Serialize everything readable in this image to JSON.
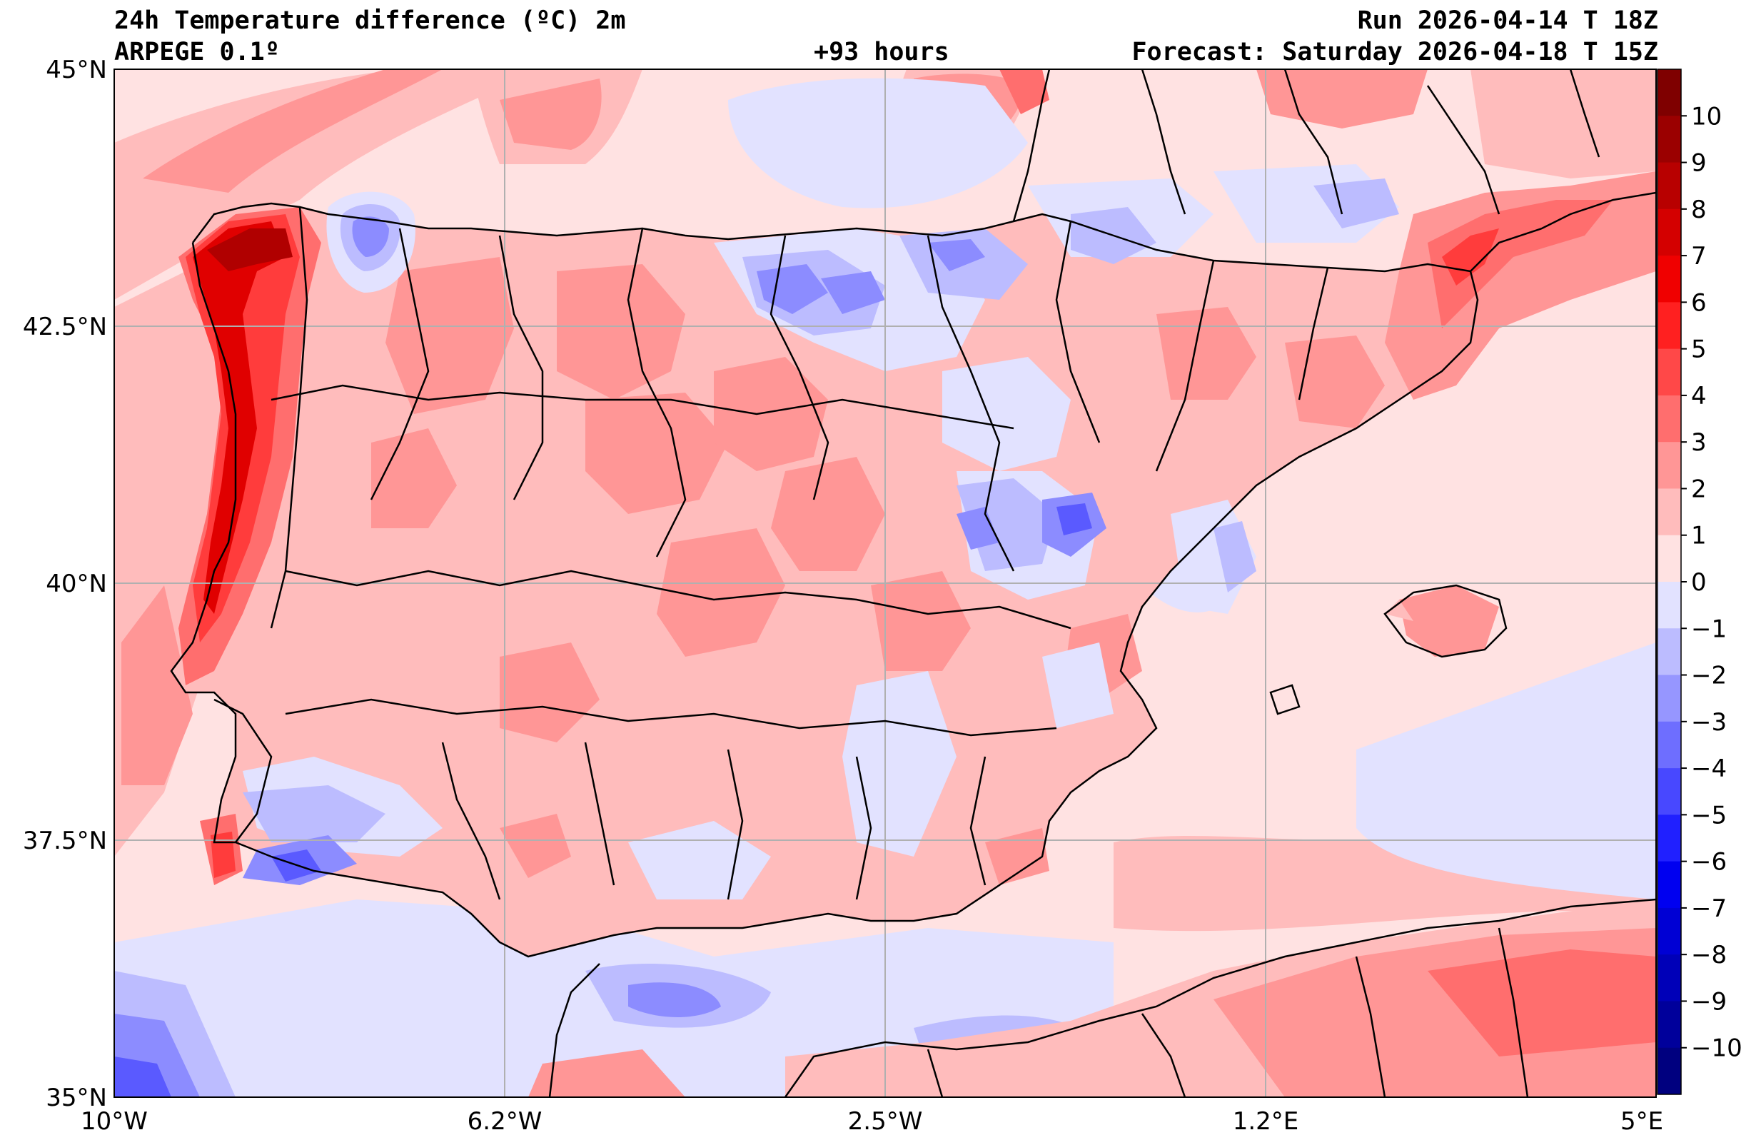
{
  "header": {
    "title": "24h Temperature difference (ºC) 2m",
    "model": "ARPEGE 0.1º",
    "lead": "+93 hours",
    "run": "Run 2026-04-14 T 18Z",
    "forecast": "Forecast: Saturday 2026-04-18 T 15Z"
  },
  "axes": {
    "lat_labels": [
      "45°N",
      "42.5°N",
      "40°N",
      "37.5°N",
      "35°N"
    ],
    "lon_labels": [
      "10°W",
      "6.2°W",
      "2.5°W",
      "1.2°E",
      "5°E"
    ]
  },
  "colorbar": {
    "levels": [
      "10",
      "9",
      "8",
      "7",
      "6",
      "5",
      "4",
      "3",
      "2",
      "1",
      "0",
      "−1",
      "−2",
      "−3",
      "−4",
      "−5",
      "−6",
      "−7",
      "−8",
      "−9",
      "−10"
    ],
    "colors": [
      "#7f0000",
      "#9b0000",
      "#b80000",
      "#d40000",
      "#f00000",
      "#ff2020",
      "#ff4848",
      "#ff6e6e",
      "#ff9696",
      "#ffbcbc",
      "#ffe2e2",
      "#e2e2ff",
      "#bcbcff",
      "#9696ff",
      "#6e6eff",
      "#4848ff",
      "#2020ff",
      "#0000f0",
      "#0000d4",
      "#0000b8",
      "#00009b",
      "#00007f"
    ]
  },
  "colors": {
    "sea": "#ffe2e2",
    "land_light": "#ffcfcf",
    "warm1": "#ffbcbc",
    "warm2": "#ff9696",
    "warm3": "#ff6e6e",
    "warm4": "#ff3c3c",
    "warm5": "#e00000",
    "warm6": "#b00000",
    "cool1": "#e2e2ff",
    "cool2": "#bcbcff",
    "cool3": "#8c8cff",
    "cool4": "#5a5aff",
    "grid": "#b0b0b0",
    "border": "#000000"
  }
}
